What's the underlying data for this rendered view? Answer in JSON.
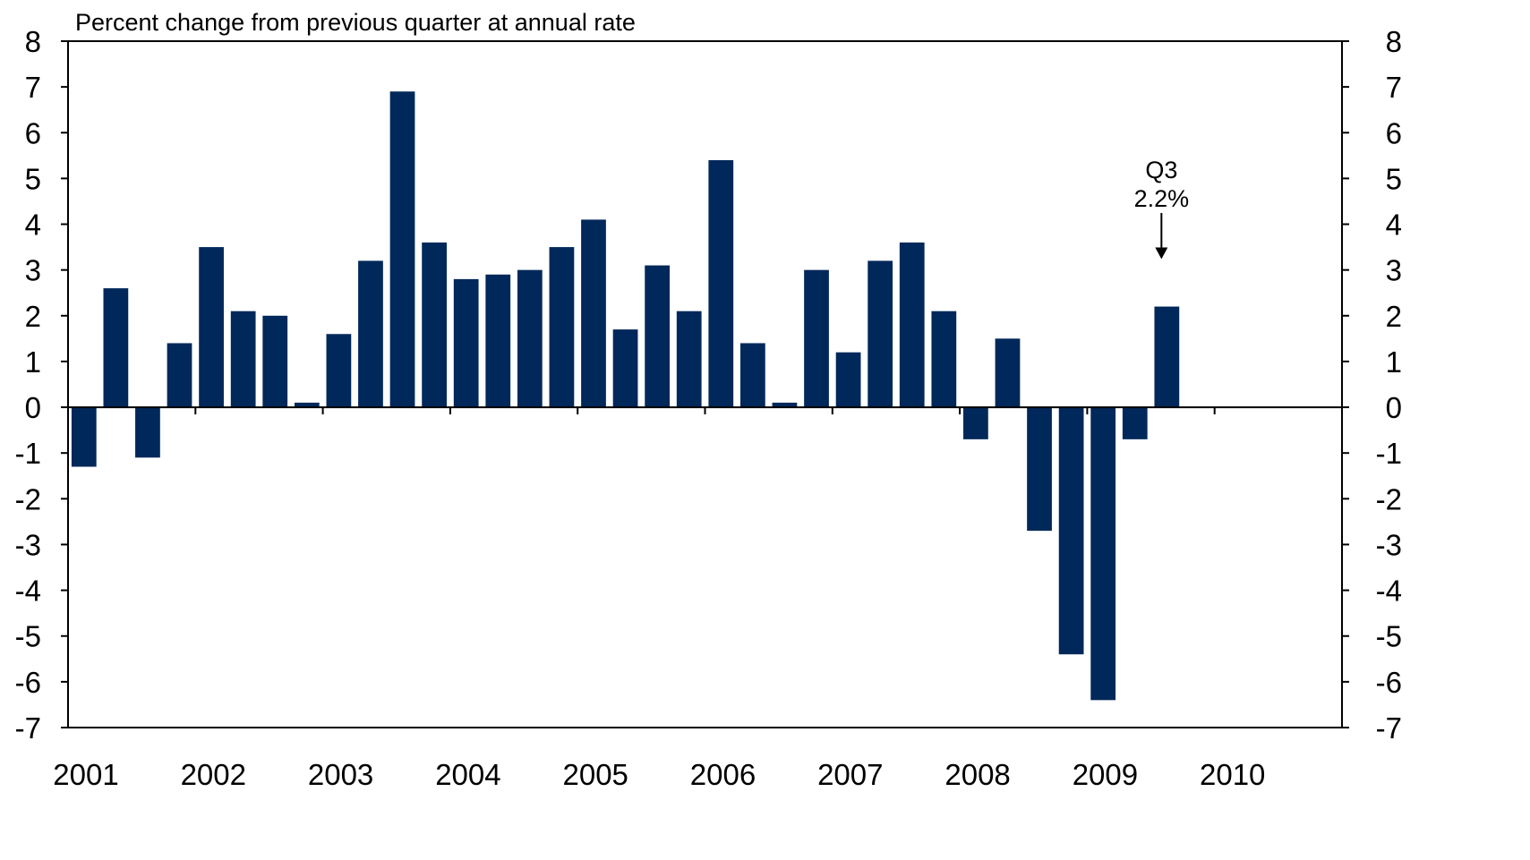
{
  "chart_data": {
    "type": "bar",
    "subtitle": "Percent change from previous quarter at annual rate",
    "title": "",
    "xlabel": "",
    "ylabel": "",
    "ylim": [
      -7,
      8
    ],
    "yticks": [
      8,
      7,
      6,
      5,
      4,
      3,
      2,
      1,
      0,
      -1,
      -2,
      -3,
      -4,
      -5,
      -6,
      -7
    ],
    "year_labels": [
      "2001",
      "2002",
      "2003",
      "2004",
      "2005",
      "2006",
      "2007",
      "2008",
      "2009",
      "2010"
    ],
    "bar_color": "#00285a",
    "grid": false,
    "series": [
      {
        "name": "",
        "values": [
          -1.3,
          2.6,
          -1.1,
          1.4,
          3.5,
          2.1,
          2.0,
          0.1,
          1.6,
          3.2,
          6.9,
          3.6,
          2.8,
          2.9,
          3.0,
          3.5,
          4.1,
          1.7,
          3.1,
          2.1,
          5.4,
          1.4,
          0.1,
          3.0,
          1.2,
          3.2,
          3.6,
          2.1,
          -0.7,
          1.5,
          -2.7,
          -5.4,
          -6.4,
          -0.7,
          2.2
        ]
      }
    ],
    "annotation": {
      "line1": "Q3",
      "line2": "2.2%"
    }
  }
}
